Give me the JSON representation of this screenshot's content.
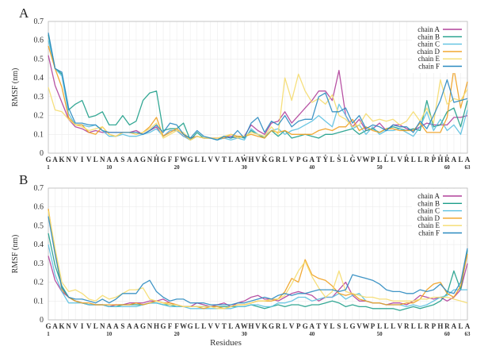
{
  "chart_data": [
    {
      "type": "line",
      "panel_label": "A",
      "ylabel": "RMSF (nm)",
      "xlabel": "",
      "ylim": [
        0,
        0.7
      ],
      "yticks": [
        "0",
        "0.1",
        "0.2",
        "0.3",
        "0.4",
        "0.5",
        "0.6",
        "0.7"
      ],
      "xlim": [
        1,
        63
      ],
      "xtick_numbers": [
        1,
        10,
        20,
        30,
        40,
        50,
        60,
        63
      ],
      "residues": [
        "G",
        "A",
        "K",
        "N",
        "V",
        "I",
        "V",
        "L",
        "N",
        "A",
        "A",
        "S",
        "A",
        "A",
        "G",
        "N",
        "H",
        "G",
        "F",
        "F",
        "W",
        "G",
        "L",
        "L",
        "V",
        "V",
        "T",
        "L",
        "A",
        "W",
        "H",
        "V",
        "K",
        "G",
        "R",
        "L",
        "V",
        "P",
        "G",
        "A",
        "T",
        "Y",
        "L",
        "S",
        "L",
        "G",
        "V",
        "W",
        "P",
        "L",
        "L",
        "L",
        "V",
        "R",
        "L",
        "L",
        "R",
        "P",
        "H",
        "R",
        "A",
        "L",
        "A"
      ],
      "marked_residues": [
        17,
        30,
        33,
        42,
        44,
        46,
        51,
        54,
        58,
        59,
        60
      ],
      "grid": true,
      "legend_position": "top-right",
      "series": [
        {
          "name": "chain A",
          "color": "#b0409a",
          "values": [
            0.52,
            0.36,
            0.27,
            0.18,
            0.14,
            0.13,
            0.11,
            0.12,
            0.11,
            0.11,
            0.11,
            0.11,
            0.11,
            0.12,
            0.1,
            0.12,
            0.14,
            0.09,
            0.12,
            0.12,
            0.09,
            0.08,
            0.09,
            0.08,
            0.08,
            0.08,
            0.08,
            0.09,
            0.08,
            0.09,
            0.15,
            0.12,
            0.1,
            0.16,
            0.17,
            0.22,
            0.16,
            0.2,
            0.24,
            0.28,
            0.33,
            0.33,
            0.28,
            0.44,
            0.2,
            0.14,
            0.18,
            0.12,
            0.13,
            0.16,
            0.12,
            0.15,
            0.15,
            0.13,
            0.12,
            0.14,
            0.16,
            0.15,
            0.15,
            0.15,
            0.19,
            0.19,
            0.2
          ]
        },
        {
          "name": "chain B",
          "color": "#1e9e8a",
          "values": [
            0.63,
            0.45,
            0.42,
            0.23,
            0.26,
            0.28,
            0.19,
            0.2,
            0.22,
            0.15,
            0.15,
            0.2,
            0.15,
            0.17,
            0.28,
            0.32,
            0.33,
            0.12,
            0.13,
            0.13,
            0.16,
            0.07,
            0.11,
            0.08,
            0.08,
            0.07,
            0.09,
            0.08,
            0.09,
            0.08,
            0.12,
            0.1,
            0.08,
            0.12,
            0.09,
            0.12,
            0.08,
            0.09,
            0.1,
            0.09,
            0.08,
            0.1,
            0.1,
            0.11,
            0.12,
            0.13,
            0.1,
            0.12,
            0.13,
            0.11,
            0.13,
            0.14,
            0.13,
            0.12,
            0.13,
            0.12,
            0.28,
            0.14,
            0.15,
            0.22,
            0.24,
            0.14,
            0.28
          ]
        },
        {
          "name": "chain C",
          "color": "#5bc0e0",
          "values": [
            0.6,
            0.45,
            0.41,
            0.21,
            0.15,
            0.15,
            0.14,
            0.15,
            0.12,
            0.09,
            0.09,
            0.1,
            0.09,
            0.09,
            0.1,
            0.11,
            0.13,
            0.09,
            0.12,
            0.12,
            0.09,
            0.07,
            0.09,
            0.08,
            0.08,
            0.07,
            0.08,
            0.07,
            0.08,
            0.07,
            0.13,
            0.1,
            0.09,
            0.12,
            0.13,
            0.1,
            0.12,
            0.13,
            0.15,
            0.17,
            0.2,
            0.17,
            0.14,
            0.26,
            0.2,
            0.13,
            0.15,
            0.1,
            0.14,
            0.1,
            0.12,
            0.12,
            0.13,
            0.11,
            0.09,
            0.14,
            0.22,
            0.12,
            0.18,
            0.12,
            0.15,
            0.1,
            0.23
          ]
        },
        {
          "name": "chain D",
          "color": "#f0a020",
          "values": [
            0.57,
            0.45,
            0.35,
            0.19,
            0.15,
            0.15,
            0.11,
            0.1,
            0.14,
            0.1,
            0.09,
            0.11,
            0.11,
            0.1,
            0.11,
            0.14,
            0.19,
            0.09,
            0.11,
            0.13,
            0.1,
            0.07,
            0.09,
            0.08,
            0.08,
            0.08,
            0.08,
            0.1,
            0.09,
            0.09,
            0.1,
            0.09,
            0.08,
            0.12,
            0.11,
            0.12,
            0.1,
            0.1,
            0.1,
            0.1,
            0.12,
            0.13,
            0.12,
            0.14,
            0.14,
            0.18,
            0.12,
            0.14,
            0.12,
            0.11,
            0.13,
            0.13,
            0.12,
            0.12,
            0.12,
            0.16,
            0.11,
            0.11,
            0.11,
            0.19,
            0.45,
            0.24,
            0.38
          ]
        },
        {
          "name": "chain E",
          "color": "#f5dc6e",
          "values": [
            0.35,
            0.23,
            0.22,
            0.18,
            0.15,
            0.14,
            0.12,
            0.13,
            0.14,
            0.1,
            0.09,
            0.11,
            0.11,
            0.1,
            0.11,
            0.13,
            0.16,
            0.08,
            0.1,
            0.12,
            0.11,
            0.07,
            0.09,
            0.08,
            0.08,
            0.08,
            0.09,
            0.1,
            0.08,
            0.09,
            0.11,
            0.1,
            0.09,
            0.14,
            0.1,
            0.4,
            0.28,
            0.42,
            0.33,
            0.27,
            0.29,
            0.26,
            0.31,
            0.2,
            0.18,
            0.14,
            0.15,
            0.21,
            0.17,
            0.18,
            0.17,
            0.18,
            0.15,
            0.17,
            0.22,
            0.17,
            0.24,
            0.16,
            0.39,
            0.26,
            0.29,
            0.28,
            0.34
          ]
        },
        {
          "name": "chain F",
          "color": "#2a8ac0",
          "values": [
            0.64,
            0.45,
            0.43,
            0.24,
            0.16,
            0.16,
            0.15,
            0.15,
            0.12,
            0.11,
            0.11,
            0.11,
            0.11,
            0.11,
            0.1,
            0.12,
            0.15,
            0.11,
            0.16,
            0.15,
            0.1,
            0.08,
            0.12,
            0.09,
            0.08,
            0.07,
            0.09,
            0.08,
            0.12,
            0.08,
            0.16,
            0.19,
            0.11,
            0.17,
            0.15,
            0.2,
            0.14,
            0.17,
            0.18,
            0.18,
            0.3,
            0.32,
            0.22,
            0.22,
            0.24,
            0.16,
            0.2,
            0.13,
            0.15,
            0.14,
            0.12,
            0.15,
            0.14,
            0.14,
            0.11,
            0.17,
            0.13,
            0.2,
            0.28,
            0.39,
            0.27,
            0.28,
            0.29
          ]
        }
      ]
    },
    {
      "type": "line",
      "panel_label": "B",
      "ylabel": "RMSF (nm)",
      "xlabel": "Residues",
      "ylim": [
        0,
        0.7
      ],
      "yticks": [
        "0",
        "0.1",
        "0.2",
        "0.3",
        "0.4",
        "0.5",
        "0.6",
        "0.7"
      ],
      "xlim": [
        1,
        63
      ],
      "xtick_numbers": [
        1,
        10,
        20,
        30,
        40,
        50,
        60,
        63
      ],
      "residues": [
        "G",
        "A",
        "K",
        "N",
        "V",
        "I",
        "V",
        "L",
        "N",
        "A",
        "A",
        "S",
        "A",
        "A",
        "G",
        "N",
        "H",
        "G",
        "F",
        "F",
        "W",
        "G",
        "L",
        "L",
        "V",
        "V",
        "T",
        "L",
        "A",
        "W",
        "H",
        "V",
        "K",
        "G",
        "R",
        "L",
        "V",
        "P",
        "G",
        "A",
        "T",
        "Y",
        "L",
        "S",
        "L",
        "G",
        "V",
        "W",
        "P",
        "L",
        "L",
        "L",
        "V",
        "R",
        "L",
        "L",
        "R",
        "P",
        "H",
        "R",
        "A",
        "L",
        "A"
      ],
      "grid": true,
      "legend_position": "top-right",
      "series": [
        {
          "name": "chain A",
          "color": "#b0409a",
          "values": [
            0.34,
            0.21,
            0.15,
            0.12,
            0.1,
            0.09,
            0.08,
            0.08,
            0.08,
            0.07,
            0.08,
            0.08,
            0.09,
            0.09,
            0.09,
            0.1,
            0.1,
            0.11,
            0.09,
            0.08,
            0.07,
            0.07,
            0.09,
            0.08,
            0.07,
            0.08,
            0.09,
            0.07,
            0.09,
            0.1,
            0.12,
            0.13,
            0.11,
            0.11,
            0.1,
            0.12,
            0.14,
            0.15,
            0.14,
            0.13,
            0.1,
            0.12,
            0.12,
            0.16,
            0.2,
            0.13,
            0.1,
            0.1,
            0.09,
            0.09,
            0.08,
            0.09,
            0.09,
            0.08,
            0.1,
            0.13,
            0.12,
            0.11,
            0.12,
            0.1,
            0.12,
            0.16,
            0.3
          ]
        },
        {
          "name": "chain B",
          "color": "#1e9e8a",
          "values": [
            0.46,
            0.29,
            0.18,
            0.12,
            0.1,
            0.09,
            0.08,
            0.08,
            0.08,
            0.07,
            0.07,
            0.08,
            0.08,
            0.08,
            0.08,
            0.09,
            0.09,
            0.08,
            0.08,
            0.07,
            0.07,
            0.07,
            0.07,
            0.07,
            0.07,
            0.07,
            0.07,
            0.07,
            0.07,
            0.07,
            0.08,
            0.07,
            0.06,
            0.07,
            0.08,
            0.07,
            0.08,
            0.08,
            0.07,
            0.08,
            0.08,
            0.09,
            0.1,
            0.09,
            0.07,
            0.08,
            0.07,
            0.07,
            0.06,
            0.06,
            0.06,
            0.06,
            0.05,
            0.06,
            0.07,
            0.06,
            0.07,
            0.08,
            0.1,
            0.14,
            0.26,
            0.16,
            0.37
          ]
        },
        {
          "name": "chain C",
          "color": "#5bc0e0",
          "values": [
            0.4,
            0.24,
            0.15,
            0.09,
            0.09,
            0.09,
            0.08,
            0.08,
            0.08,
            0.07,
            0.07,
            0.07,
            0.07,
            0.07,
            0.08,
            0.09,
            0.09,
            0.08,
            0.07,
            0.07,
            0.07,
            0.06,
            0.06,
            0.06,
            0.06,
            0.06,
            0.06,
            0.06,
            0.07,
            0.07,
            0.08,
            0.08,
            0.07,
            0.07,
            0.09,
            0.09,
            0.1,
            0.12,
            0.12,
            0.1,
            0.11,
            0.12,
            0.12,
            0.14,
            0.11,
            0.13,
            0.14,
            0.1,
            0.09,
            0.09,
            0.08,
            0.08,
            0.08,
            0.07,
            0.08,
            0.07,
            0.08,
            0.1,
            0.12,
            0.13,
            0.16,
            0.16,
            0.16
          ]
        },
        {
          "name": "chain D",
          "color": "#f0a020",
          "values": [
            0.59,
            0.36,
            0.16,
            0.12,
            0.1,
            0.09,
            0.09,
            0.08,
            0.08,
            0.08,
            0.08,
            0.08,
            0.08,
            0.09,
            0.08,
            0.09,
            0.1,
            0.09,
            0.09,
            0.08,
            0.07,
            0.07,
            0.07,
            0.06,
            0.07,
            0.07,
            0.06,
            0.07,
            0.08,
            0.08,
            0.09,
            0.1,
            0.1,
            0.1,
            0.11,
            0.15,
            0.22,
            0.2,
            0.32,
            0.24,
            0.22,
            0.21,
            0.18,
            0.14,
            0.13,
            0.14,
            0.11,
            0.1,
            0.09,
            0.09,
            0.08,
            0.08,
            0.08,
            0.09,
            0.09,
            0.11,
            0.16,
            0.19,
            0.2,
            0.14,
            0.12,
            0.18,
            0.35
          ]
        },
        {
          "name": "chain E",
          "color": "#f5dc6e",
          "values": [
            0.58,
            0.38,
            0.2,
            0.15,
            0.16,
            0.14,
            0.11,
            0.1,
            0.13,
            0.11,
            0.12,
            0.14,
            0.16,
            0.16,
            0.17,
            0.11,
            0.1,
            0.09,
            0.08,
            0.08,
            0.07,
            0.07,
            0.07,
            0.07,
            0.07,
            0.06,
            0.06,
            0.07,
            0.08,
            0.08,
            0.09,
            0.1,
            0.1,
            0.11,
            0.11,
            0.13,
            0.19,
            0.26,
            0.31,
            0.23,
            0.17,
            0.12,
            0.15,
            0.26,
            0.15,
            0.14,
            0.13,
            0.12,
            0.12,
            0.11,
            0.11,
            0.1,
            0.1,
            0.1,
            0.1,
            0.11,
            0.11,
            0.12,
            0.12,
            0.12,
            0.11,
            0.1,
            0.09
          ]
        },
        {
          "name": "chain F",
          "color": "#2a8ac0",
          "values": [
            0.55,
            0.35,
            0.17,
            0.12,
            0.11,
            0.11,
            0.1,
            0.09,
            0.11,
            0.09,
            0.11,
            0.14,
            0.14,
            0.14,
            0.19,
            0.21,
            0.15,
            0.12,
            0.1,
            0.11,
            0.11,
            0.09,
            0.09,
            0.09,
            0.08,
            0.08,
            0.08,
            0.08,
            0.09,
            0.09,
            0.1,
            0.11,
            0.12,
            0.11,
            0.13,
            0.14,
            0.13,
            0.14,
            0.14,
            0.15,
            0.16,
            0.16,
            0.16,
            0.15,
            0.16,
            0.24,
            0.23,
            0.22,
            0.21,
            0.19,
            0.16,
            0.15,
            0.15,
            0.14,
            0.14,
            0.16,
            0.15,
            0.16,
            0.19,
            0.15,
            0.14,
            0.2,
            0.38
          ]
        }
      ]
    }
  ]
}
